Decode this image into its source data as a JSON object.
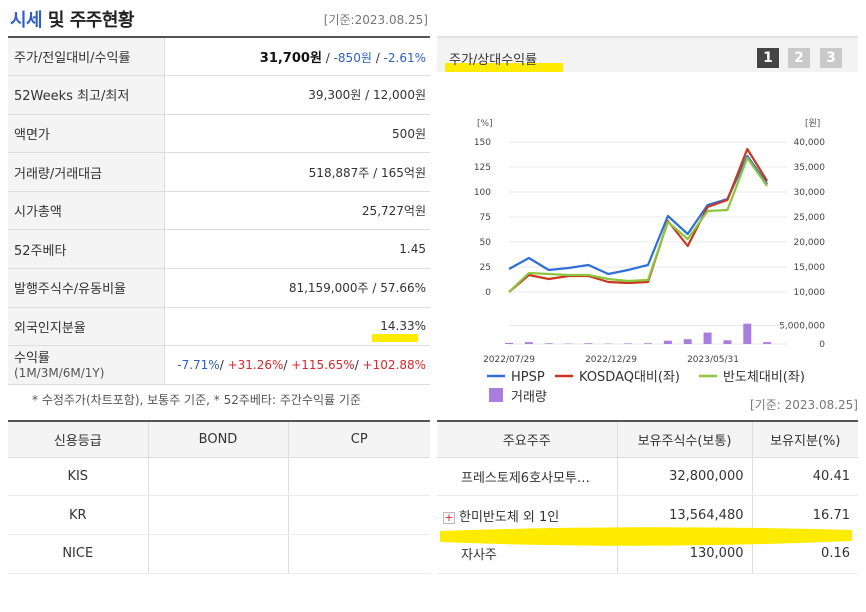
{
  "header": {
    "title_accent": "시세",
    "title_rest": " 및 주주현황",
    "std_date": "[기준:2023.08.25]"
  },
  "quote": {
    "rows": [
      {
        "label": "주가/전일대비/수익률"
      },
      {
        "label": "52Weeks 최고/최저",
        "value": "39,300원 / 12,000원"
      },
      {
        "label": "액면가",
        "value": "500원"
      },
      {
        "label": "거래량/거래대금",
        "value": "518,887주 / 165억원"
      },
      {
        "label": "시가총액",
        "value": "25,727억원"
      },
      {
        "label": "52주베타",
        "value": "1.45"
      },
      {
        "label": "발행주식수/유동비율",
        "value": "81,159,000주 / 57.66%"
      },
      {
        "label": "외국인지분율",
        "value": "14.33%"
      },
      {
        "label": "수익률",
        "sub": "(1M/3M/6M/1Y)"
      }
    ],
    "price": "31,700원",
    "change": "-850원",
    "rate": "-2.61%",
    "returns": [
      "-7.71%",
      "+31.26%",
      "+115.65%",
      "+102.88%"
    ],
    "note": "* 수정주가(차트포함), 보통주 기준, * 52주베타: 주간수익률 기준"
  },
  "credit": {
    "headers": [
      "신용등급",
      "BOND",
      "CP"
    ],
    "rows": [
      [
        "KIS",
        "",
        ""
      ],
      [
        "KR",
        "",
        ""
      ],
      [
        "NICE",
        "",
        ""
      ]
    ]
  },
  "chart": {
    "title": "주가/상대수익률",
    "tabs": [
      "1",
      "2",
      "3"
    ],
    "left_unit": "[%]",
    "right_unit": "[원]",
    "colors": {
      "hpsp": "#2f6fd6",
      "kosdaq": "#c8391f",
      "semi": "#8cc63e",
      "volume": "#a77ee0"
    }
  },
  "chart_data": {
    "type": "line",
    "x": [
      "2022/07/29",
      "2022/08/26",
      "2022/09/23",
      "2022/10/21",
      "2022/11/18",
      "2022/12/16",
      "2023/01/13",
      "2023/02/10",
      "2023/03/10",
      "2023/04/07",
      "2023/05/05",
      "2023/06/02",
      "2023/06/30",
      "2023/07/28",
      "2023/08/25"
    ],
    "x_tick_labels": [
      "2022/07/29",
      "2022/12/29",
      "2023/05/31"
    ],
    "series": [
      {
        "name": "HPSP",
        "axis": "left",
        "values": [
          23,
          34,
          22,
          24,
          27,
          18,
          22,
          27,
          76,
          58,
          87,
          93,
          136,
          108,
          null
        ]
      },
      {
        "name": "KOSDAQ대비(좌)",
        "axis": "left",
        "values": [
          0,
          17,
          13,
          16,
          16,
          10,
          9,
          10,
          71,
          46,
          85,
          92,
          143,
          111,
          null
        ]
      },
      {
        "name": "반도체대비(좌)",
        "axis": "left",
        "values": [
          0,
          19,
          18,
          17,
          17,
          13,
          11,
          12,
          70,
          53,
          81,
          82,
          134,
          106,
          null
        ]
      },
      {
        "name": "거래량",
        "axis": "volume",
        "values": [
          300000,
          500000,
          200000,
          100000,
          200000,
          100000,
          150000,
          200000,
          900000,
          1300000,
          3100000,
          1000000,
          5500000,
          500000,
          null
        ]
      }
    ],
    "yleft": {
      "ticks": [
        0,
        25,
        50,
        75,
        100,
        125,
        150
      ],
      "ylim": [
        0,
        150
      ]
    },
    "yright": {
      "ticks": [
        "10,000",
        "15,000",
        "20,000",
        "25,000",
        "30,000",
        "35,000",
        "40,000"
      ]
    },
    "yvolume": {
      "ticks": [
        "0",
        "5,000,000"
      ],
      "ylim": [
        0,
        6500000
      ]
    },
    "legend": "bottom"
  },
  "holders": {
    "std_date": "[기준: 2023.08.25]",
    "headers": [
      "주요주주",
      "보유주식수(보통)",
      "보유지분(%)"
    ],
    "rows": [
      {
        "name": "프레스토제6호사모투…",
        "shares": "32,800,000",
        "pct": "40.41"
      },
      {
        "name": "한미반도체 외 1인",
        "shares": "13,564,480",
        "pct": "16.71",
        "expandable": true
      },
      {
        "name": "자사주",
        "shares": "130,000",
        "pct": "0.16"
      }
    ]
  }
}
